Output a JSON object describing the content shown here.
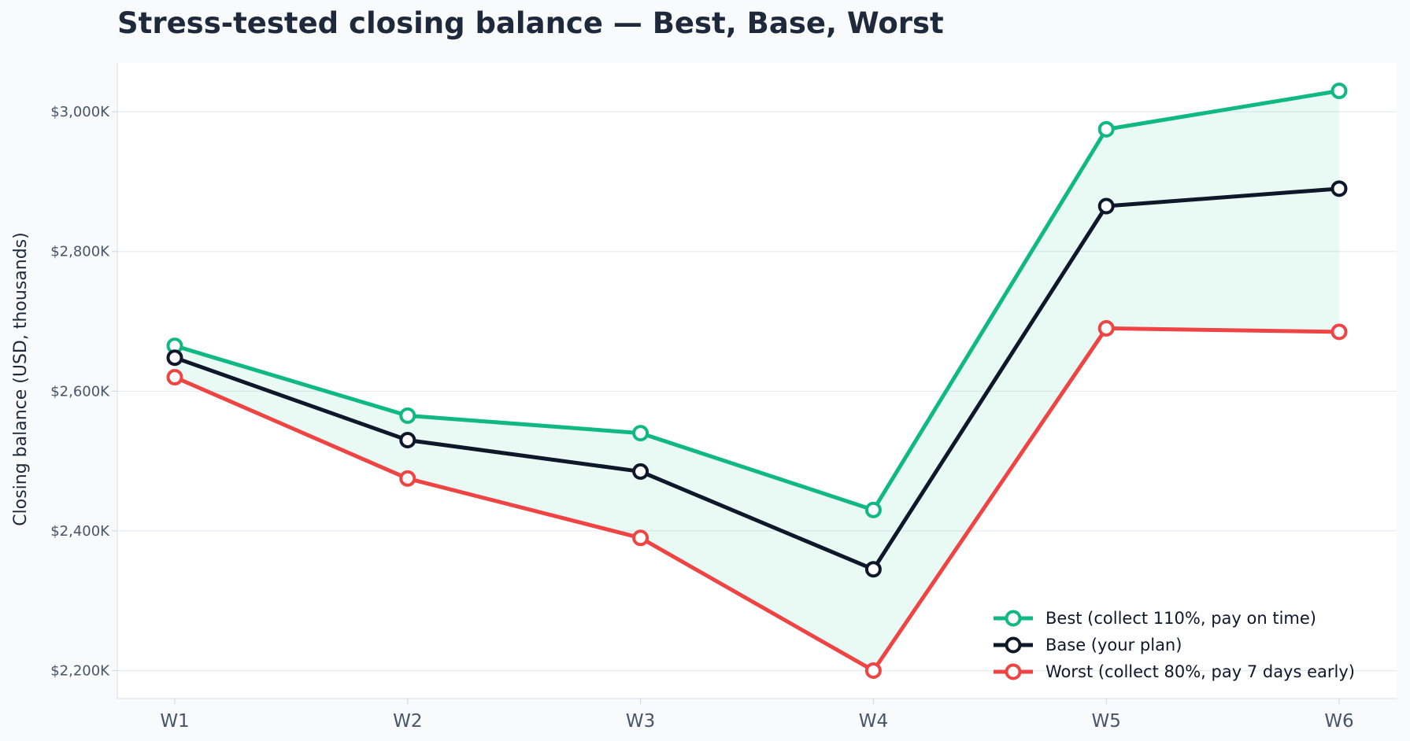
{
  "chart_data": {
    "type": "line",
    "title": "Stress-tested closing balance — Best, Base, Worst",
    "xlabel": "",
    "ylabel": "Closing balance (USD, thousands)",
    "categories": [
      "W1",
      "W2",
      "W3",
      "W4",
      "W5",
      "W6"
    ],
    "ylim": [
      2160,
      3070
    ],
    "yticks": [
      2200,
      2400,
      2600,
      2800,
      3000
    ],
    "ytick_labels": [
      "$2,200K",
      "$2,400K",
      "$2,600K",
      "$2,800K",
      "$3,000K"
    ],
    "grid": true,
    "legend_position": "bottom-right",
    "band_fill": "between Best and Worst",
    "series": [
      {
        "name": "Best (collect 110%, pay on time)",
        "color": "#10b981",
        "values": [
          2665,
          2565,
          2540,
          2430,
          2975,
          3030
        ]
      },
      {
        "name": "Base (your plan)",
        "color": "#0f172a",
        "values": [
          2648,
          2530,
          2485,
          2345,
          2865,
          2890
        ]
      },
      {
        "name": "Worst (collect 80%, pay 7 days early)",
        "color": "#ef4444",
        "values": [
          2620,
          2475,
          2390,
          2200,
          2690,
          2685
        ]
      }
    ],
    "band_color": "#10b981"
  }
}
